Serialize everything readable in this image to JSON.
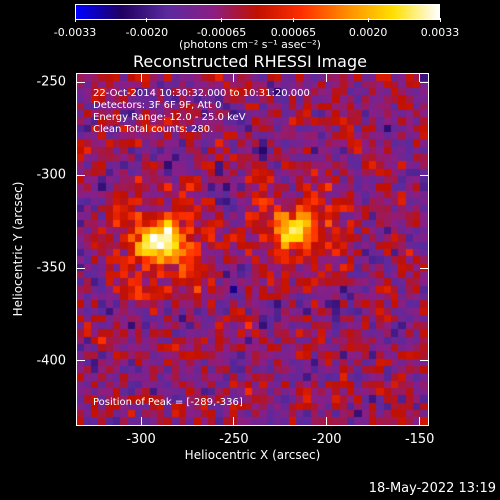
{
  "colorbar": {
    "ticks": [
      "-0.0033",
      "-0.0020",
      "-0.00065",
      "0.00065",
      "0.0020",
      "0.0033"
    ],
    "tick_values": [
      -0.0033,
      -0.002,
      -0.00065,
      0.00065,
      0.002,
      0.0033
    ],
    "units_text": "(photons cm⁻² s⁻¹ asec⁻²)",
    "colormap_stops": [
      "#0000ff",
      "#200060",
      "#5a2a9e",
      "#8a1e86",
      "#c21000",
      "#ff3000",
      "#ff9000",
      "#ffe000",
      "#ffffff"
    ]
  },
  "plot": {
    "title": "Reconstructed RHESSI Image",
    "annotations": {
      "line1": "22-Oct-2014 10:30:32.000 to 10:31:20.000",
      "line2": "Detectors: 3F 6F 9F, Att 0",
      "line3": "Energy Range: 12.0 - 25.0 keV",
      "line4": "Clean    Total counts: 280.",
      "peak": "Position of Peak = [-289,-336]"
    }
  },
  "chart_data": {
    "type": "heatmap",
    "title": "Reconstructed RHESSI Image",
    "xlabel": "Heliocentric X (arcsec)",
    "ylabel": "Heliocentric Y (arcsec)",
    "xlim": [
      -335,
      -145
    ],
    "ylim": [
      -435,
      -245
    ],
    "xticks": [
      "-300",
      "-250",
      "-200",
      "-150"
    ],
    "xtick_values": [
      -300,
      -250,
      -200,
      -150
    ],
    "yticks": [
      "-250",
      "-300",
      "-350",
      "-400"
    ],
    "ytick_values": [
      -250,
      -300,
      -350,
      -400
    ],
    "zlim": [
      -0.0033,
      0.0033
    ],
    "sources": [
      {
        "x": -289,
        "y": -336,
        "relative_intensity": 1.0
      },
      {
        "x": -215,
        "y": -330,
        "relative_intensity": 0.75
      }
    ],
    "peak_position": [
      -289,
      -336
    ]
  },
  "footer": {
    "timestamp": "18-May-2022 13:19"
  }
}
